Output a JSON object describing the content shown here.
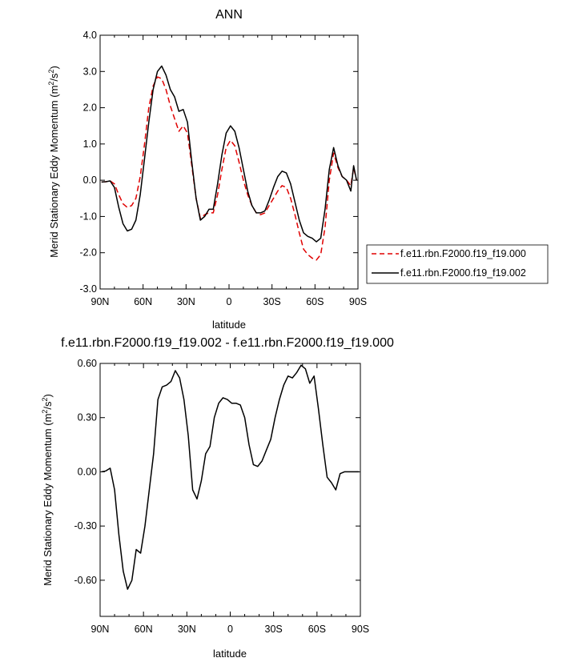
{
  "chart_data": [
    {
      "type": "line",
      "title": "ANN",
      "xlabel": "latitude",
      "ylabel": "Merid Stationary Eddy Momentum (m",
      "ylabel_sup1": "2",
      "ylabel_mid": "/s",
      "ylabel_sup2": "2",
      "ylabel_end": ")",
      "xlim": [
        90,
        -90
      ],
      "ylim": [
        -3.0,
        4.0
      ],
      "x_ticks": [
        90,
        60,
        30,
        0,
        -30,
        -60,
        -90
      ],
      "x_tick_labels": [
        "90N",
        "60N",
        "30N",
        "0",
        "30S",
        "60S",
        "90S"
      ],
      "y_ticks": [
        -3,
        -2,
        -1,
        0,
        1,
        2,
        3,
        4
      ],
      "y_tick_labels": [
        "-3.0",
        "-2.0",
        "-1.0",
        "0.0",
        "1.0",
        "2.0",
        "3.0",
        "4.0"
      ],
      "grid": false,
      "legend": "right",
      "series": [
        {
          "name": "f.e11.rbn.F2000.f19_f19.000",
          "color": "#e00000",
          "dash": "dashed",
          "x": [
            89,
            86,
            83,
            80,
            77,
            74,
            71,
            68,
            65,
            62,
            59,
            56,
            53,
            50,
            47,
            44,
            41,
            38,
            35,
            32,
            29,
            26,
            23,
            20,
            17,
            14,
            11,
            8,
            5,
            2,
            -1,
            -4,
            -7,
            -10,
            -13,
            -16,
            -19,
            -22,
            -25,
            -28,
            -31,
            -34,
            -37,
            -40,
            -43,
            -46,
            -49,
            -52,
            -55,
            -58,
            -61,
            -64,
            -67,
            -70,
            -73,
            -76,
            -79,
            -82,
            -85,
            -87,
            -89
          ],
          "y": [
            -0.05,
            -0.04,
            -0.02,
            -0.1,
            -0.4,
            -0.65,
            -0.75,
            -0.7,
            -0.5,
            0.1,
            1.0,
            2.0,
            2.6,
            2.85,
            2.8,
            2.5,
            2.05,
            1.7,
            1.35,
            1.5,
            1.3,
            0.4,
            -0.5,
            -1.05,
            -0.95,
            -0.9,
            -0.9,
            -0.4,
            0.3,
            0.9,
            1.1,
            0.95,
            0.5,
            0.0,
            -0.4,
            -0.7,
            -0.9,
            -0.95,
            -0.9,
            -0.7,
            -0.5,
            -0.3,
            -0.15,
            -0.2,
            -0.5,
            -0.95,
            -1.45,
            -1.9,
            -2.05,
            -2.15,
            -2.2,
            -2.05,
            -1.3,
            0.0,
            0.75,
            0.35,
            0.1,
            0.0,
            -0.15,
            0.35,
            0.0
          ]
        },
        {
          "name": "f.e11.rbn.F2000.f19_f19.002",
          "color": "#000000",
          "dash": "solid",
          "x": [
            89,
            86,
            83,
            80,
            77,
            74,
            71,
            68,
            65,
            62,
            59,
            56,
            53,
            50,
            47,
            44,
            41,
            38,
            35,
            32,
            29,
            26,
            23,
            20,
            17,
            14,
            11,
            8,
            5,
            2,
            -1,
            -4,
            -7,
            -10,
            -13,
            -16,
            -19,
            -22,
            -25,
            -28,
            -31,
            -34,
            -37,
            -40,
            -43,
            -46,
            -49,
            -52,
            -55,
            -58,
            -61,
            -64,
            -67,
            -70,
            -73,
            -76,
            -79,
            -82,
            -85,
            -87,
            -89
          ],
          "y": [
            -0.05,
            -0.04,
            -0.02,
            -0.2,
            -0.75,
            -1.2,
            -1.4,
            -1.35,
            -1.1,
            -0.4,
            0.6,
            1.6,
            2.5,
            3.0,
            3.15,
            2.9,
            2.5,
            2.3,
            1.9,
            1.95,
            1.6,
            0.5,
            -0.5,
            -1.1,
            -1.0,
            -0.8,
            -0.8,
            -0.1,
            0.7,
            1.3,
            1.5,
            1.35,
            0.9,
            0.3,
            -0.3,
            -0.7,
            -0.9,
            -0.9,
            -0.85,
            -0.55,
            -0.2,
            0.1,
            0.25,
            0.2,
            -0.1,
            -0.6,
            -1.1,
            -1.45,
            -1.55,
            -1.6,
            -1.7,
            -1.6,
            -0.8,
            0.3,
            0.9,
            0.4,
            0.1,
            0.0,
            -0.3,
            0.4,
            0.0
          ]
        }
      ]
    },
    {
      "type": "line",
      "title": "f.e11.rbn.F2000.f19_f19.002 - f.e11.rbn.F2000.f19_f19.000",
      "xlabel": "latitude",
      "ylabel": "Merid Stationary Eddy Momentum (m",
      "ylabel_sup1": "2",
      "ylabel_mid": "/s",
      "ylabel_sup2": "2",
      "ylabel_end": ")",
      "xlim": [
        90,
        -90
      ],
      "ylim": [
        -0.8,
        0.6
      ],
      "x_ticks": [
        90,
        60,
        30,
        0,
        -30,
        -60,
        -90
      ],
      "x_tick_labels": [
        "90N",
        "60N",
        "30N",
        "0",
        "30S",
        "60S",
        "90S"
      ],
      "y_ticks": [
        -0.6,
        -0.3,
        0.0,
        0.3,
        0.6
      ],
      "y_tick_labels": [
        "-0.60",
        "-0.30",
        "0.00",
        "0.30",
        "0.60"
      ],
      "grid": false,
      "series": [
        {
          "color": "#000000",
          "dash": "solid",
          "x": [
            89,
            86,
            83,
            80,
            77,
            74,
            71,
            68,
            65,
            62,
            59,
            56,
            53,
            50,
            47,
            44,
            41,
            38,
            35,
            32,
            29,
            26,
            23,
            20,
            17,
            14,
            11,
            8,
            5,
            2,
            -1,
            -4,
            -7,
            -10,
            -13,
            -16,
            -19,
            -22,
            -25,
            -28,
            -31,
            -34,
            -37,
            -40,
            -43,
            -46,
            -49,
            -52,
            -55,
            -58,
            -61,
            -64,
            -67,
            -70,
            -73,
            -76,
            -79,
            -82,
            -85,
            -87,
            -89
          ],
          "y": [
            0.0,
            0.005,
            0.02,
            -0.1,
            -0.35,
            -0.55,
            -0.65,
            -0.6,
            -0.43,
            -0.45,
            -0.3,
            -0.1,
            0.1,
            0.4,
            0.47,
            0.48,
            0.5,
            0.56,
            0.52,
            0.4,
            0.2,
            -0.1,
            -0.15,
            -0.05,
            0.1,
            0.14,
            0.3,
            0.38,
            0.41,
            0.4,
            0.38,
            0.38,
            0.37,
            0.3,
            0.15,
            0.04,
            0.03,
            0.06,
            0.12,
            0.18,
            0.3,
            0.4,
            0.48,
            0.53,
            0.52,
            0.55,
            0.59,
            0.57,
            0.49,
            0.53,
            0.35,
            0.15,
            -0.03,
            -0.06,
            -0.1,
            -0.01,
            0.0,
            0.0,
            0.0,
            0.0,
            0.0
          ]
        }
      ]
    }
  ]
}
